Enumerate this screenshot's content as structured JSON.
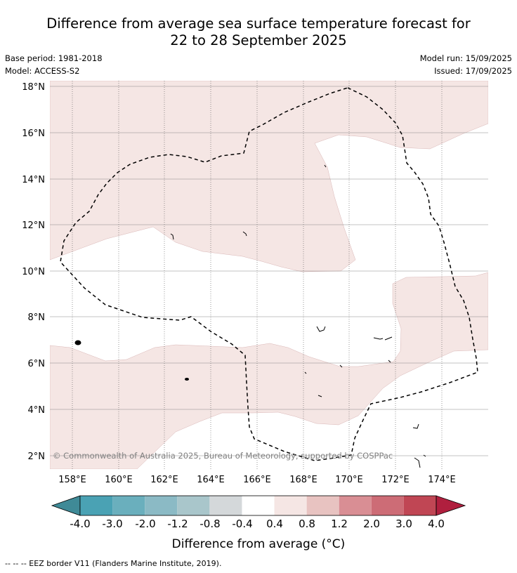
{
  "title_line1": "Difference from average sea surface temperature forecast for",
  "title_line2": "22 to 28 September 2025",
  "base_period": "Base period: 1981-2018",
  "model": "Model: ACCESS-S2",
  "model_run": "Model run: 15/09/2025",
  "issued": "Issued: 17/09/2025",
  "copyright": "© Commonwealth of Australia 2025, Bureau of Meteorology, supported by COSPPac",
  "map": {
    "lon_labels": [
      "158°E",
      "160°E",
      "162°E",
      "164°E",
      "166°E",
      "168°E",
      "170°E",
      "172°E",
      "174°E"
    ],
    "lat_labels": [
      "18°N",
      "16°N",
      "14°N",
      "12°N",
      "10°N",
      "8°N",
      "6°N",
      "4°N",
      "2°N"
    ]
  },
  "colorbar": {
    "title": "Difference from average (°C)",
    "ticks": [
      "-4.0",
      "-3.0",
      "-2.0",
      "-1.2",
      "-0.8",
      "-0.4",
      "0.4",
      "0.8",
      "1.2",
      "2.0",
      "3.0",
      "4.0"
    ],
    "colors": [
      "#4aa2b4",
      "#6aafbd",
      "#8bbac5",
      "#a9c6cb",
      "#d4d8da",
      "#ffffff",
      "#f5e6e4",
      "#e8c3c1",
      "#d98e94",
      "#cd6c76",
      "#c04654"
    ],
    "extend_low_color": "#3f8a97",
    "extend_high_color": "#b01f3e"
  },
  "footer": "--  --  -- EEZ border V11 (Flanders Marine Institute, 2019).",
  "field_color_0_4_to_0_8": "#f5e6e4"
}
